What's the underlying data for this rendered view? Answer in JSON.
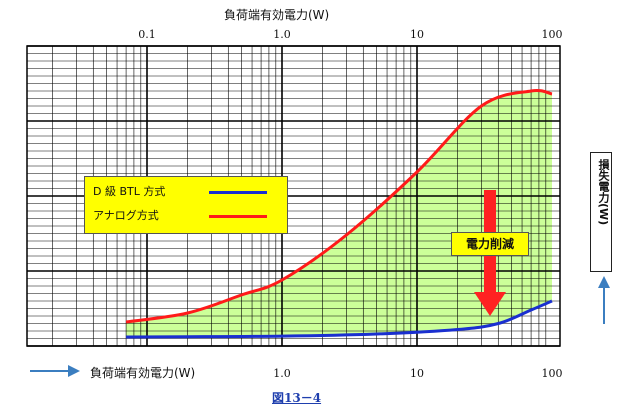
{
  "top_axis_title": "負荷端有効電力(W)",
  "bottom_axis_title": "負荷端有効電力(W)",
  "right_axis_title": "損失電力(W)",
  "figure_caption": "図13－4",
  "annotation": "電力削減",
  "colors": {
    "class_d": "#1a2fd0",
    "analog": "#ff1a1a",
    "fill": "#ccff99",
    "legend_bg": "#ffff00",
    "arrow": "#ff2222",
    "axis_arrow": "#3b7ec0",
    "caption": "#1f3fae"
  },
  "chart_data": {
    "type": "line",
    "xscale": "log",
    "xlim": [
      0.05,
      100
    ],
    "ylim": [
      0,
      1
    ],
    "grid": true,
    "top_ticks": [
      "0.1",
      "1.0",
      "10",
      "100"
    ],
    "bottom_ticks": [
      "1.0",
      "10",
      "100"
    ],
    "legend": [
      {
        "label": "D 級 BTL 方式",
        "color": "#1a2fd0"
      },
      {
        "label": "アナログ方式",
        "color": "#ff1a1a"
      }
    ],
    "series": [
      {
        "name": "D 級 BTL 方式",
        "x": [
          0.07,
          0.2,
          1,
          5,
          20,
          40,
          70,
          100
        ],
        "y": [
          0.03,
          0.031,
          0.033,
          0.04,
          0.055,
          0.075,
          0.12,
          0.15
        ]
      },
      {
        "name": "アナログ方式",
        "x": [
          0.07,
          0.2,
          0.5,
          1,
          3,
          10,
          30,
          70,
          100
        ],
        "y": [
          0.08,
          0.11,
          0.17,
          0.22,
          0.37,
          0.58,
          0.8,
          0.85,
          0.84
        ]
      }
    ],
    "annotation": "電力削減",
    "shaded_region": "between series"
  }
}
